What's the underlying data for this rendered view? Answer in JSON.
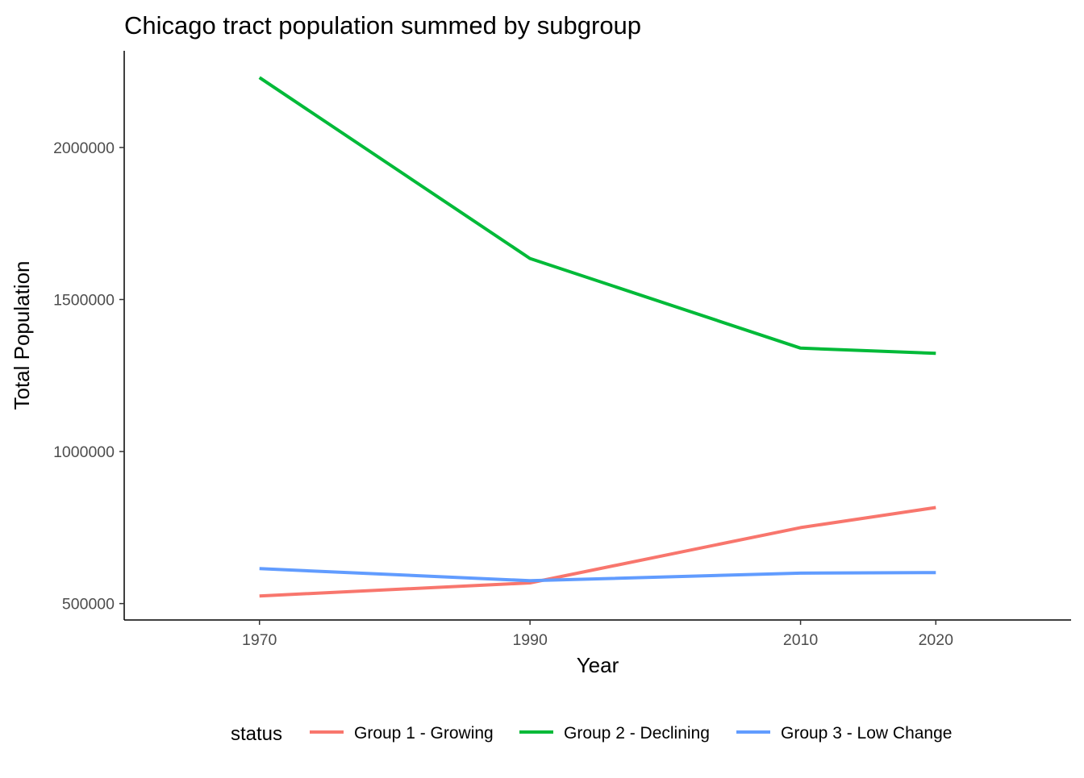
{
  "chart_data": {
    "type": "line",
    "title": "Chicago tract population summed by subgroup",
    "xlabel": "Year",
    "ylabel": "Total Population",
    "x": [
      1970,
      1990,
      2010,
      2020
    ],
    "x_ticks": [
      "1970",
      "1990",
      "2010",
      "2020"
    ],
    "y_ticks": [
      500000,
      1000000,
      1500000,
      2000000
    ],
    "y_tick_labels": [
      "500000",
      "1000000",
      "1500000",
      "2000000"
    ],
    "ylim": [
      446000,
      2318000
    ],
    "grid": false,
    "legend": {
      "title": "status",
      "position": "bottom"
    },
    "series": [
      {
        "name": "Group 1 - Growing",
        "color": "#F8766D",
        "values": [
          525000,
          568000,
          750000,
          816000
        ]
      },
      {
        "name": "Group 2 - Declining",
        "color": "#00BA38",
        "values": [
          2230000,
          1635000,
          1340000,
          1323000
        ]
      },
      {
        "name": "Group 3 - Low Change",
        "color": "#619CFF",
        "values": [
          615000,
          575000,
          600000,
          602000
        ]
      }
    ]
  }
}
